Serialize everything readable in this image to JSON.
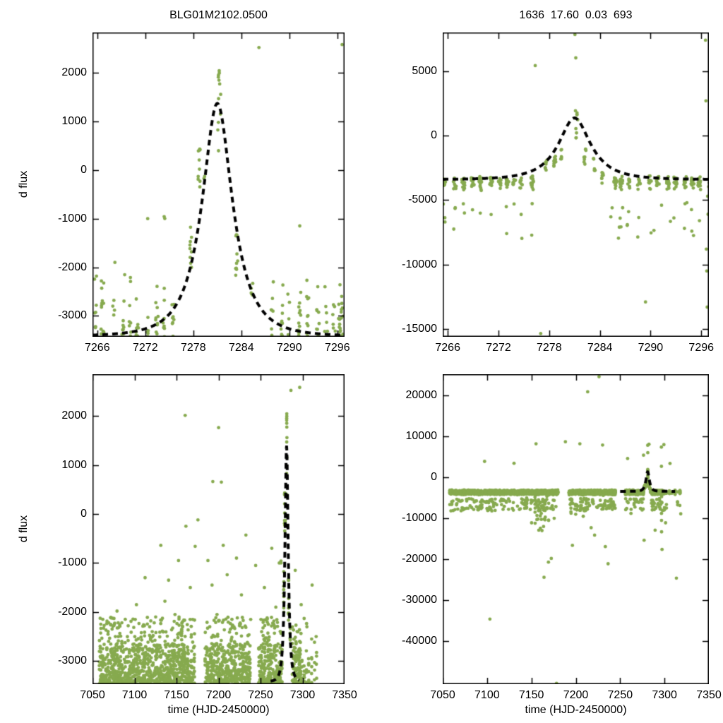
{
  "chart_data": {
    "type": "scatter",
    "title_left": "BLG01M2102.0500",
    "title_right": "1636  17.60  0.03  693",
    "xlabel": "time (HJD-2450000)",
    "ylabel": "d flux",
    "point_color": "#87aa4f",
    "model_color": "#000000",
    "background": "#ffffff",
    "legend": "none",
    "grid": "off",
    "model": {
      "description": "dashed Paczynski microlensing model curve",
      "t0": 7281.0,
      "tE": 3.95,
      "u0": 0.5,
      "left": {
        "baseline": -3420,
        "fs": 4050
      },
      "right": {
        "baseline": -3410,
        "fs": 4040
      }
    },
    "panels": [
      {
        "id": "top-left",
        "pos": "tl",
        "title": "BLG01M2102.0500",
        "dataset": "left",
        "xlim": [
          7265.4,
          7296.9
        ],
        "ylim": [
          -3430,
          2830
        ],
        "xticks": [
          7266,
          7272,
          7278,
          7284,
          7290,
          7296
        ],
        "yticks": [
          2000,
          1000,
          0,
          -1000,
          -2000,
          -3000
        ],
        "show_ylabel": true,
        "show_xlabel": false,
        "model_range": [
          7265.4,
          7296.9
        ]
      },
      {
        "id": "top-right",
        "pos": "tr",
        "title": "1636  17.60  0.03  693",
        "dataset": "right",
        "xlim": [
          7265.4,
          7296.9
        ],
        "ylim": [
          -15600,
          8000
        ],
        "xticks": [
          7266,
          7272,
          7278,
          7284,
          7290,
          7296
        ],
        "yticks": [
          5000,
          0,
          -5000,
          -10000,
          -15000
        ],
        "show_ylabel": false,
        "show_xlabel": false,
        "model_range": [
          7265.4,
          7296.9
        ]
      },
      {
        "id": "bottom-left",
        "pos": "bl",
        "title": "",
        "dataset": "left",
        "xlim": [
          7050,
          7350
        ],
        "ylim": [
          -3470,
          2850
        ],
        "xticks": [
          7050,
          7100,
          7150,
          7200,
          7250,
          7300,
          7350
        ],
        "yticks": [
          2000,
          1000,
          0,
          -1000,
          -2000,
          -3000
        ],
        "show_ylabel": true,
        "show_xlabel": true,
        "model_range": [
          7262,
          7296
        ]
      },
      {
        "id": "bottom-right",
        "pos": "br",
        "title": "",
        "dataset": "right",
        "xlim": [
          7050,
          7350
        ],
        "ylim": [
          -50500,
          25200
        ],
        "xticks": [
          7050,
          7100,
          7150,
          7200,
          7250,
          7300,
          7350
        ],
        "yticks": [
          20000,
          10000,
          0,
          -10000,
          -20000,
          -30000,
          -40000
        ],
        "show_ylabel": false,
        "show_xlabel": true,
        "model_range": [
          7250,
          7312
        ]
      }
    ],
    "datasets": {
      "left": {
        "seed": 20150407,
        "band": {
          "t_start": 7058,
          "t_end": 7318,
          "gaps": [
            [
              7172,
              7183
            ],
            [
              7238,
              7247
            ],
            [
              7276.5,
              7287.4
            ]
          ],
          "sparse_after": 7299,
          "n_min": 7,
          "n_max": 17,
          "f_min": -3510,
          "f_max": -2640,
          "skew": 2.2,
          "uptail_frac": 0.1,
          "uptail_max": -2100
        },
        "clusters": [
          [
            7277.55,
            7277.8,
            9,
            -2200,
            -950,
            1
          ],
          [
            7278.6,
            7278.85,
            11,
            -430,
            530,
            1
          ],
          [
            7279.3,
            7279.45,
            2,
            -180,
            -60,
            1
          ],
          [
            7281.05,
            7281.45,
            10,
            330,
            1980,
            1
          ],
          [
            7281.15,
            7281.3,
            2,
            1990,
            2045,
            1
          ],
          [
            7283.3,
            7283.55,
            11,
            -2280,
            -1300,
            1
          ],
          [
            7285.2,
            7285.45,
            5,
            -2820,
            -2260,
            1
          ],
          [
            7274.3,
            7274.45,
            2,
            -1060,
            -930,
            1
          ],
          [
            7296.35,
            7296.8,
            10,
            -3500,
            -2330,
            1.8
          ]
        ],
        "outliers": [
          [
            7296.6,
            2580
          ],
          [
            7286.2,
            2520
          ],
          [
            7160.3,
            2010
          ],
          [
            7200.1,
            1760
          ],
          [
            7193.2,
            660
          ],
          [
            7203.4,
            650
          ],
          [
            7079.2,
            -1980
          ],
          [
            7092.5,
            -2280
          ],
          [
            7102.3,
            -1850
          ],
          [
            7108.1,
            -2420
          ],
          [
            7112.6,
            -1300
          ],
          [
            7119.4,
            -2180
          ],
          [
            7125.2,
            -2100
          ],
          [
            7131.3,
            -640
          ],
          [
            7136.2,
            -1780
          ],
          [
            7140.6,
            -1350
          ],
          [
            7148.2,
            -2050
          ],
          [
            7152.4,
            -950
          ],
          [
            7157.3,
            -2300
          ],
          [
            7161.2,
            -250
          ],
          [
            7166.4,
            -1500
          ],
          [
            7169.3,
            -2150
          ],
          [
            7172.2,
            -660
          ],
          [
            7175.5,
            -120
          ],
          [
            7187.4,
            -950
          ],
          [
            7192.3,
            -1450
          ],
          [
            7198.2,
            -2050
          ],
          [
            7205.6,
            -640
          ],
          [
            7210.3,
            -1240
          ],
          [
            7214.2,
            -2350
          ],
          [
            7221.4,
            -900
          ],
          [
            7227.3,
            -1650
          ],
          [
            7232.6,
            -430
          ],
          [
            7238.3,
            -2150
          ],
          [
            7244.2,
            -1050
          ],
          [
            7251.3,
            -2400
          ],
          [
            7254.6,
            -1500
          ],
          [
            7259.2,
            -2250
          ],
          [
            7263.4,
            -700
          ],
          [
            7268.2,
            -1900
          ],
          [
            7272.3,
            -1000
          ],
          [
            7291.3,
            -1150
          ],
          [
            7298.4,
            -1850
          ],
          [
            7305.2,
            -2300
          ],
          [
            7311.4,
            -1450
          ],
          [
            7316.2,
            -2500
          ]
        ]
      },
      "right": {
        "seed": 99173,
        "band": {
          "t_start": 7058,
          "t_end": 7318,
          "gaps": [
            [
              7180,
              7192
            ],
            [
              7245,
              7255
            ],
            [
              7276.8,
              7284.6
            ]
          ],
          "sparse_after": 7299,
          "n_min": 8,
          "n_max": 18,
          "center": -3650,
          "spread": 620,
          "downtail_frac": 0.1,
          "downtail_min": -5200,
          "downtail_max": -8200
        },
        "dips": [
          [
            7150,
            7176,
            -13200
          ],
          [
            7190,
            7212,
            -9500
          ],
          [
            7228,
            7233,
            -7600
          ],
          [
            7143,
            7147,
            -8200
          ]
        ],
        "clusters": [
          [
            7277.5,
            7277.75,
            8,
            -2700,
            -1850,
            1.2
          ],
          [
            7278.55,
            7278.8,
            10,
            -2450,
            -1400,
            1.2
          ],
          [
            7279.3,
            7279.5,
            6,
            -1850,
            -1000,
            1.2
          ],
          [
            7281.05,
            7281.4,
            10,
            -550,
            2150,
            1
          ],
          [
            7282.1,
            7282.35,
            8,
            -2250,
            -750,
            1.2
          ],
          [
            7283.2,
            7283.45,
            7,
            -2700,
            -1650,
            1.2
          ],
          [
            7284.15,
            7284.4,
            8,
            -3700,
            -2650,
            1.2
          ]
        ],
        "outliers": [
          [
            7276.35,
            5430
          ],
          [
            7277.0,
            -15350
          ],
          [
            7281.05,
            7840
          ],
          [
            7281.15,
            6030
          ],
          [
            7285.3,
            -6300
          ],
          [
            7285.45,
            -5600
          ],
          [
            7286.2,
            -7950
          ],
          [
            7286.3,
            -7100
          ],
          [
            7286.4,
            -6400
          ],
          [
            7287.25,
            -6900
          ],
          [
            7287.4,
            -5900
          ],
          [
            7288.6,
            -6350
          ],
          [
            7290.4,
            -7350
          ],
          [
            7291.3,
            -5400
          ],
          [
            7292.35,
            -6650
          ],
          [
            7294.3,
            -5200
          ],
          [
            7296.5,
            7400
          ],
          [
            7296.55,
            2700
          ],
          [
            7296.6,
            -8800
          ],
          [
            7296.65,
            -10500
          ],
          [
            7296.7,
            -13300
          ],
          [
            7296.75,
            -4700
          ],
          [
            7296.8,
            -6100
          ],
          [
            7226.2,
            24600
          ],
          [
            7213.4,
            20900
          ],
          [
            7155.2,
            8200
          ],
          [
            7188.3,
            8700
          ],
          [
            7204.6,
            8200
          ],
          [
            7230.2,
            7900
          ],
          [
            7282.5,
            8100
          ],
          [
            7299.3,
            8000
          ],
          [
            7258.4,
            4600
          ],
          [
            7097.2,
            3900
          ],
          [
            7130.4,
            3450
          ],
          [
            7306.2,
            3400
          ],
          [
            7103.2,
            -34600
          ],
          [
            7178.3,
            -50300
          ],
          [
            7164.2,
            -24400
          ],
          [
            7236.4,
            -21100
          ],
          [
            7196.2,
            -16600
          ],
          [
            7233.3,
            -16900
          ],
          [
            7221.2,
            -14100
          ],
          [
            7313.4,
            -24600
          ],
          [
            7297.2,
            -17600
          ],
          [
            7158.3,
            -12900
          ],
          [
            7150.2,
            -11100
          ],
          [
            7208.4,
            -9500
          ],
          [
            7217.3,
            -12300
          ],
          [
            7262.2,
            -8800
          ],
          [
            7289.4,
            -12900
          ],
          [
            7301.2,
            -11100
          ],
          [
            7318.3,
            -8900
          ],
          [
            7172.4,
            -19800
          ],
          [
            7169.2,
            -20700
          ]
        ]
      }
    }
  }
}
